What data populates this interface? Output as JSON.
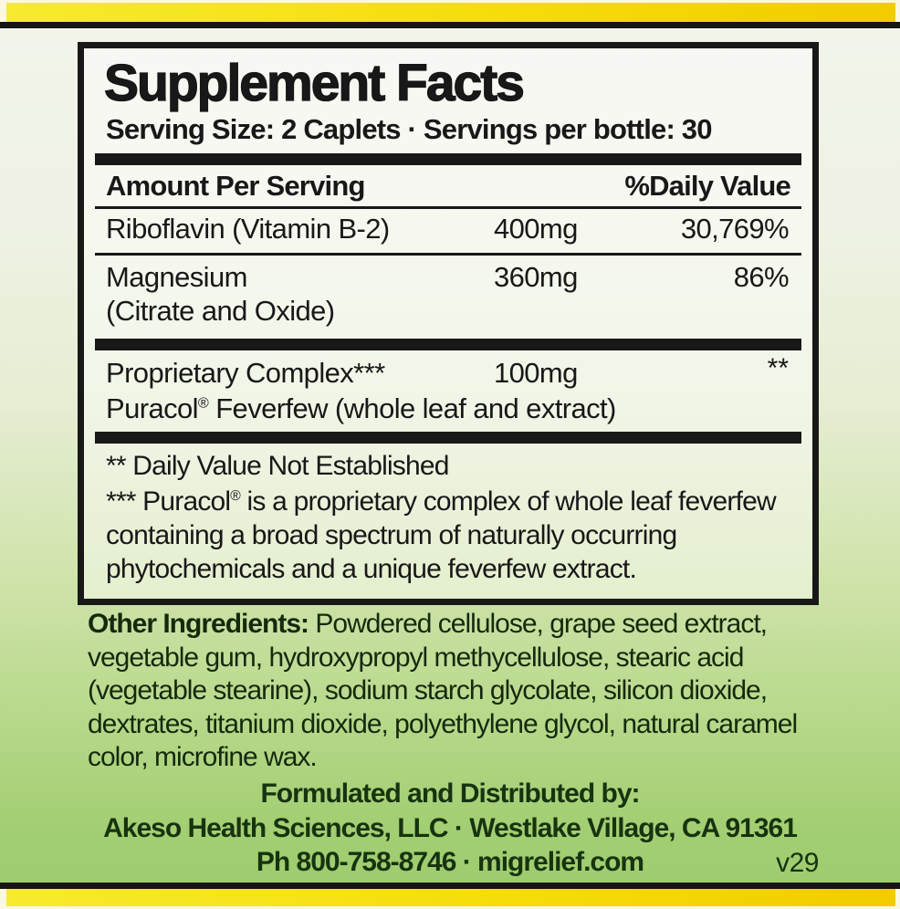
{
  "colors": {
    "band_yellow_left": "#F7EB2E",
    "band_yellow_right": "#F2CC00",
    "background_green_bottom": "#9CCB6B",
    "panel_background": "#EDF1E2",
    "rule_black": "#181818",
    "lower_text_green": "#17330F"
  },
  "facts_panel": {
    "title": "Supplement Facts",
    "serving_line": "Serving Size: 2 Caplets · Servings per bottle: 30",
    "header": {
      "amount": "Amount Per Serving",
      "daily_value": "%Daily Value"
    },
    "rows": [
      {
        "name": "Riboflavin (Vitamin B-2)",
        "amount": "400mg",
        "dv": "30,769%"
      },
      {
        "name": "Magnesium",
        "detail": "(Citrate and Oxide)",
        "amount": "360mg",
        "dv": "86%"
      },
      {
        "name": "Proprietary Complex***",
        "amount": "100mg",
        "dv": "**",
        "detail_prefix": "Puracol",
        "detail_reg": "®",
        "detail_suffix": "Feverfew (whole leaf and extract)"
      }
    ],
    "footnotes": {
      "dv_marker": "**",
      "dv_text": "Daily Value Not Established",
      "puracol_marker": "***",
      "puracol_prefix": "Puracol",
      "puracol_reg": "®",
      "puracol_text": "is a proprietary complex of whole leaf feverfew containing a broad spectrum of naturally occurring phytochemicals and a unique feverfew extract."
    }
  },
  "other_ingredients": {
    "label": "Other Ingredients:",
    "text": "Powdered cellulose, grape seed extract, vegetable gum, hydroxypropyl methycellulose, stearic acid (vegetable stearine), sodium starch glycolate, silicon dioxide, dextrates, titanium dioxide, polyethylene glycol, natural caramel color, microfine wax."
  },
  "distributor": {
    "line1": "Formulated and Distributed by:",
    "line2": "Akeso Health Sciences, LLC · Westlake Village, CA 91361",
    "line3": "Ph 800-758-8746 · migrelief.com",
    "version": "v29"
  }
}
